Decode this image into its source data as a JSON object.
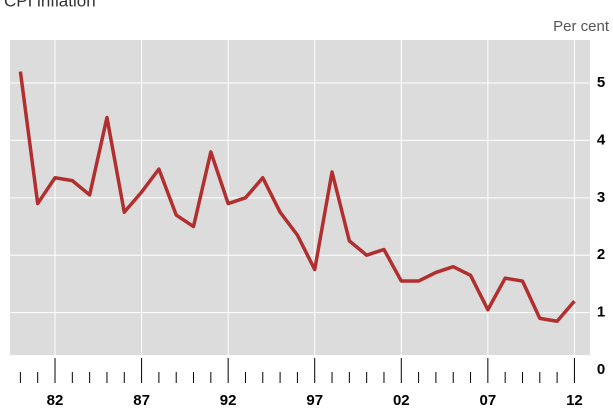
{
  "chart_data": {
    "type": "line",
    "title": "CPI inflation",
    "y_label": "Per cent",
    "x": [
      1980,
      1981,
      1982,
      1983,
      1984,
      1985,
      1986,
      1987,
      1988,
      1989,
      1990,
      1991,
      1992,
      1993,
      1994,
      1995,
      1996,
      1997,
      1998,
      1999,
      2000,
      2001,
      2002,
      2003,
      2004,
      2005,
      2006,
      2007,
      2008,
      2009,
      2010,
      2011,
      2012
    ],
    "series": [
      {
        "color": "#b1302f",
        "values": [
          5.2,
          2.9,
          3.35,
          3.3,
          3.05,
          4.4,
          2.75,
          3.1,
          3.5,
          2.7,
          2.5,
          3.8,
          2.9,
          3.0,
          3.35,
          2.75,
          2.35,
          1.75,
          3.45,
          2.25,
          2.0,
          2.1,
          1.55,
          1.55,
          1.7,
          1.8,
          1.65,
          1.05,
          1.6,
          1.55,
          0.9,
          0.85,
          1.2
        ]
      }
    ],
    "xlim": [
      1979.4,
      2012.9
    ],
    "xticks": [
      {
        "value": 1982,
        "label": "82"
      },
      {
        "value": 1987,
        "label": "87"
      },
      {
        "value": 1992,
        "label": "92"
      },
      {
        "value": 1997,
        "label": "97"
      },
      {
        "value": 2002,
        "label": "02"
      },
      {
        "value": 2007,
        "label": "07"
      },
      {
        "value": 2012,
        "label": "12"
      }
    ],
    "xminorticks": [
      1980,
      1981,
      1983,
      1984,
      1985,
      1986,
      1988,
      1989,
      1990,
      1991,
      1993,
      1994,
      1995,
      1996,
      1998,
      1999,
      2000,
      2001,
      2003,
      2004,
      2005,
      2006,
      2008,
      2009,
      2010,
      2011
    ],
    "ylim": [
      0,
      5.75
    ],
    "yticks": [
      0,
      1,
      2,
      3,
      4,
      5
    ],
    "grid": true,
    "background": "#dcdcdc"
  }
}
